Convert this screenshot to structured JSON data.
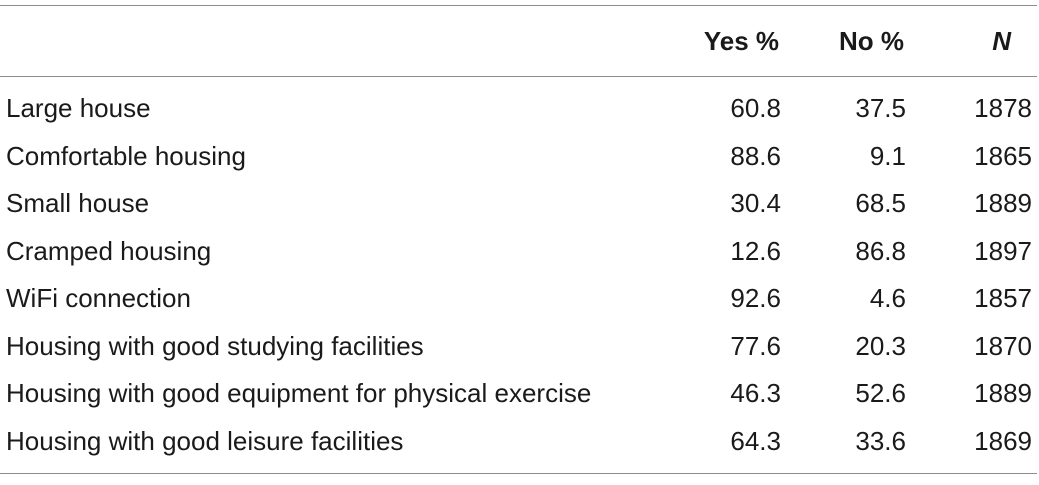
{
  "table": {
    "headers": {
      "label": "",
      "yes": "Yes %",
      "no": "No %",
      "n": "N"
    },
    "rows": [
      {
        "label": "Large house",
        "yes": "60.8",
        "no": "37.5",
        "n": "1878"
      },
      {
        "label": "Comfortable housing",
        "yes": "88.6",
        "no": "9.1",
        "n": "1865"
      },
      {
        "label": "Small house",
        "yes": "30.4",
        "no": "68.5",
        "n": "1889"
      },
      {
        "label": "Cramped housing",
        "yes": "12.6",
        "no": "86.8",
        "n": "1897"
      },
      {
        "label": "WiFi connection",
        "yes": "92.6",
        "no": "4.6",
        "n": "1857"
      },
      {
        "label": "Housing with good studying facilities",
        "yes": "77.6",
        "no": "20.3",
        "n": "1870"
      },
      {
        "label": "Housing with good equipment for physical exercise",
        "yes": "46.3",
        "no": "52.6",
        "n": "1889"
      },
      {
        "label": "Housing with good leisure facilities",
        "yes": "64.3",
        "no": "33.6",
        "n": "1869"
      }
    ]
  }
}
